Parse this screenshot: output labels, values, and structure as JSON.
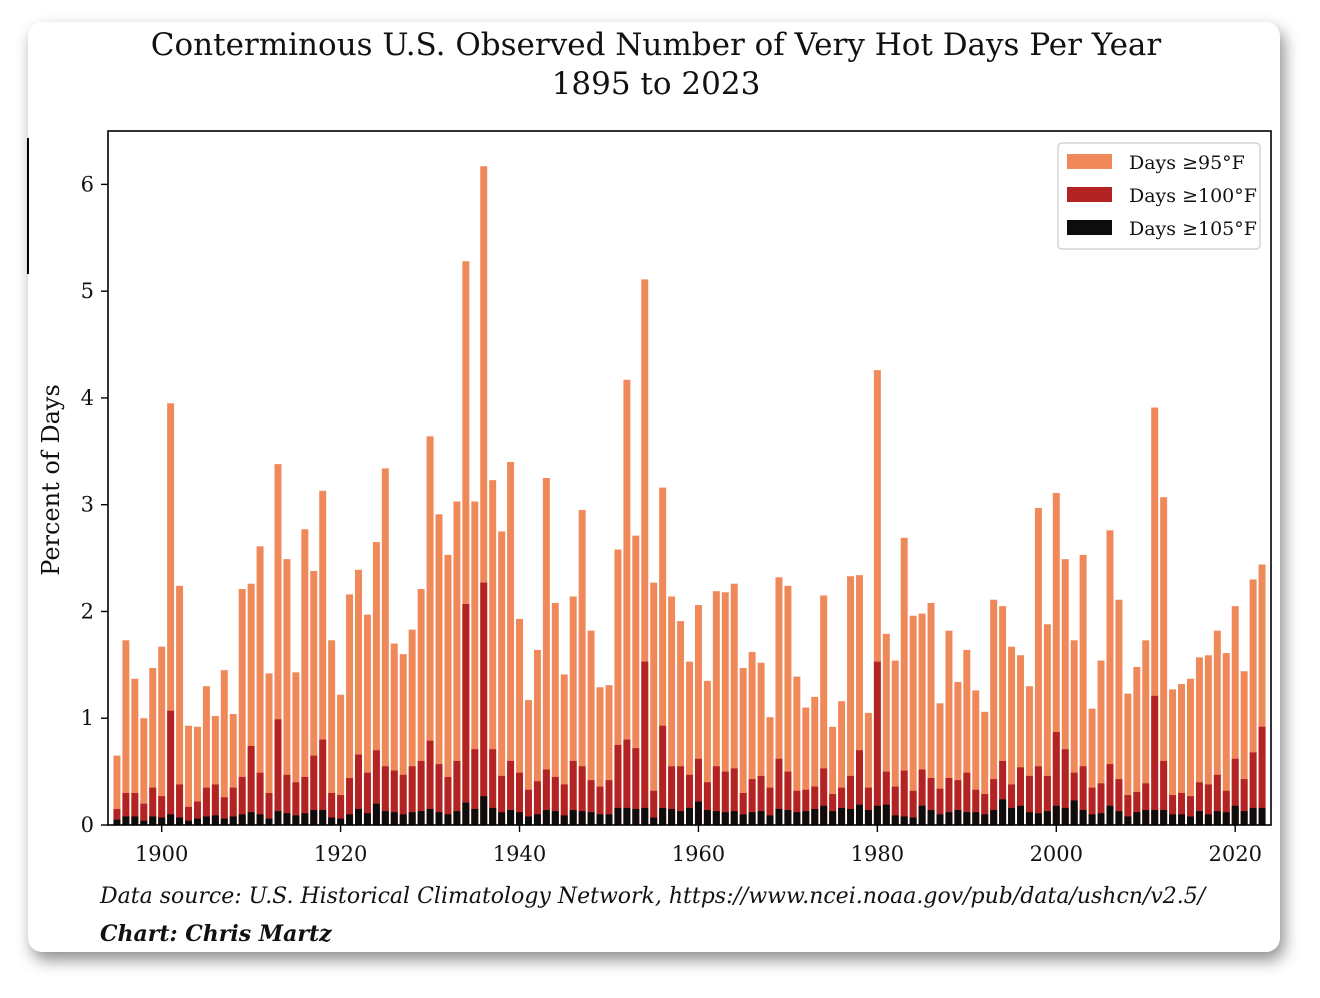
{
  "chart_data": {
    "type": "bar",
    "title": "Conterminous U.S. Observed Number of Very Hot Days Per Year",
    "subtitle": "1895 to 2023",
    "xlabel": "",
    "ylabel": "Percent of Days",
    "x_start": 1895,
    "x_end": 2023,
    "xlim": [
      1894,
      2024
    ],
    "ylim": [
      0,
      6.5
    ],
    "xticks": [
      1900,
      1920,
      1940,
      1960,
      1980,
      2000,
      2020
    ],
    "yticks": [
      0,
      1,
      2,
      3,
      4,
      5,
      6
    ],
    "legend_position": "top-right",
    "series": [
      {
        "name": "Days ≥95°F",
        "color": "#f0895a",
        "values": [
          0.65,
          1.73,
          1.37,
          1.0,
          1.47,
          1.67,
          3.95,
          2.24,
          0.93,
          0.92,
          1.3,
          1.02,
          1.45,
          1.04,
          2.21,
          2.26,
          2.61,
          1.42,
          3.38,
          2.49,
          1.43,
          2.77,
          2.38,
          3.13,
          1.73,
          1.22,
          2.16,
          2.39,
          1.97,
          2.65,
          3.34,
          1.7,
          1.6,
          1.83,
          2.21,
          3.64,
          2.91,
          2.53,
          3.03,
          5.28,
          3.03,
          6.17,
          3.23,
          2.75,
          3.4,
          1.93,
          1.17,
          1.64,
          3.25,
          2.08,
          1.41,
          2.14,
          2.95,
          1.82,
          1.29,
          1.31,
          2.58,
          4.17,
          2.71,
          5.11,
          2.27,
          3.16,
          2.14,
          1.91,
          1.53,
          2.06,
          1.35,
          2.19,
          2.18,
          2.26,
          1.47,
          1.62,
          1.52,
          1.01,
          2.32,
          2.24,
          1.39,
          1.1,
          1.2,
          2.15,
          0.92,
          1.16,
          2.33,
          2.34,
          1.05,
          4.26,
          1.79,
          1.54,
          2.69,
          1.96,
          1.98,
          2.08,
          1.14,
          1.82,
          1.34,
          1.64,
          1.26,
          1.06,
          2.11,
          2.05,
          1.67,
          1.59,
          1.3,
          2.97,
          1.88,
          3.11,
          2.49,
          1.73,
          2.53,
          1.09,
          1.54,
          2.76,
          2.11,
          1.23,
          1.48,
          1.73,
          3.91,
          3.07,
          1.27,
          1.32,
          1.37,
          1.57,
          1.59,
          1.82,
          1.61,
          2.05,
          1.44,
          2.3,
          2.44
        ]
      },
      {
        "name": "Days ≥100°F",
        "color": "#b42323",
        "values": [
          0.15,
          0.3,
          0.3,
          0.2,
          0.35,
          0.27,
          1.07,
          0.38,
          0.17,
          0.22,
          0.35,
          0.38,
          0.26,
          0.35,
          0.45,
          0.74,
          0.49,
          0.3,
          0.99,
          0.47,
          0.4,
          0.45,
          0.65,
          0.8,
          0.3,
          0.28,
          0.44,
          0.66,
          0.49,
          0.7,
          0.55,
          0.51,
          0.47,
          0.55,
          0.6,
          0.79,
          0.57,
          0.45,
          0.6,
          2.07,
          0.71,
          2.27,
          0.71,
          0.46,
          0.6,
          0.49,
          0.33,
          0.41,
          0.52,
          0.45,
          0.38,
          0.6,
          0.55,
          0.42,
          0.36,
          0.42,
          0.75,
          0.8,
          0.72,
          1.53,
          0.32,
          0.93,
          0.55,
          0.55,
          0.47,
          0.62,
          0.4,
          0.55,
          0.5,
          0.53,
          0.3,
          0.43,
          0.46,
          0.35,
          0.62,
          0.5,
          0.32,
          0.33,
          0.36,
          0.53,
          0.29,
          0.35,
          0.46,
          0.7,
          0.35,
          1.53,
          0.5,
          0.36,
          0.51,
          0.32,
          0.52,
          0.44,
          0.34,
          0.44,
          0.42,
          0.49,
          0.33,
          0.29,
          0.43,
          0.6,
          0.38,
          0.54,
          0.46,
          0.55,
          0.46,
          0.87,
          0.71,
          0.49,
          0.55,
          0.35,
          0.39,
          0.57,
          0.43,
          0.28,
          0.31,
          0.39,
          1.21,
          0.6,
          0.28,
          0.3,
          0.27,
          0.4,
          0.38,
          0.47,
          0.32,
          0.62,
          0.43,
          0.68,
          0.92
        ]
      },
      {
        "name": "Days ≥105°F",
        "color": "#0d0d0d",
        "values": [
          0.05,
          0.08,
          0.08,
          0.04,
          0.08,
          0.07,
          0.1,
          0.07,
          0.04,
          0.06,
          0.08,
          0.09,
          0.06,
          0.08,
          0.1,
          0.12,
          0.1,
          0.06,
          0.13,
          0.11,
          0.09,
          0.11,
          0.14,
          0.14,
          0.07,
          0.06,
          0.1,
          0.15,
          0.11,
          0.2,
          0.13,
          0.12,
          0.1,
          0.12,
          0.13,
          0.15,
          0.12,
          0.1,
          0.13,
          0.21,
          0.15,
          0.27,
          0.16,
          0.12,
          0.14,
          0.12,
          0.08,
          0.1,
          0.14,
          0.13,
          0.09,
          0.14,
          0.13,
          0.12,
          0.1,
          0.1,
          0.16,
          0.16,
          0.15,
          0.16,
          0.07,
          0.16,
          0.15,
          0.13,
          0.16,
          0.22,
          0.14,
          0.13,
          0.12,
          0.13,
          0.1,
          0.12,
          0.13,
          0.09,
          0.15,
          0.14,
          0.12,
          0.13,
          0.15,
          0.18,
          0.13,
          0.16,
          0.15,
          0.19,
          0.14,
          0.18,
          0.19,
          0.09,
          0.08,
          0.07,
          0.18,
          0.14,
          0.1,
          0.12,
          0.14,
          0.12,
          0.12,
          0.1,
          0.14,
          0.24,
          0.16,
          0.18,
          0.12,
          0.11,
          0.13,
          0.18,
          0.16,
          0.23,
          0.14,
          0.1,
          0.11,
          0.18,
          0.13,
          0.08,
          0.12,
          0.14,
          0.14,
          0.14,
          0.1,
          0.1,
          0.08,
          0.13,
          0.1,
          0.13,
          0.12,
          0.18,
          0.13,
          0.16,
          0.16
        ]
      }
    ]
  },
  "footer": {
    "source": "Data source: U.S. Historical Climatology Network, https://www.ncei.noaa.gov/pub/data/ushcn/v2.5/",
    "credit": "Chart: Chris Martz"
  },
  "colors": {
    "background": "#ffffff",
    "axis": "#000000"
  }
}
